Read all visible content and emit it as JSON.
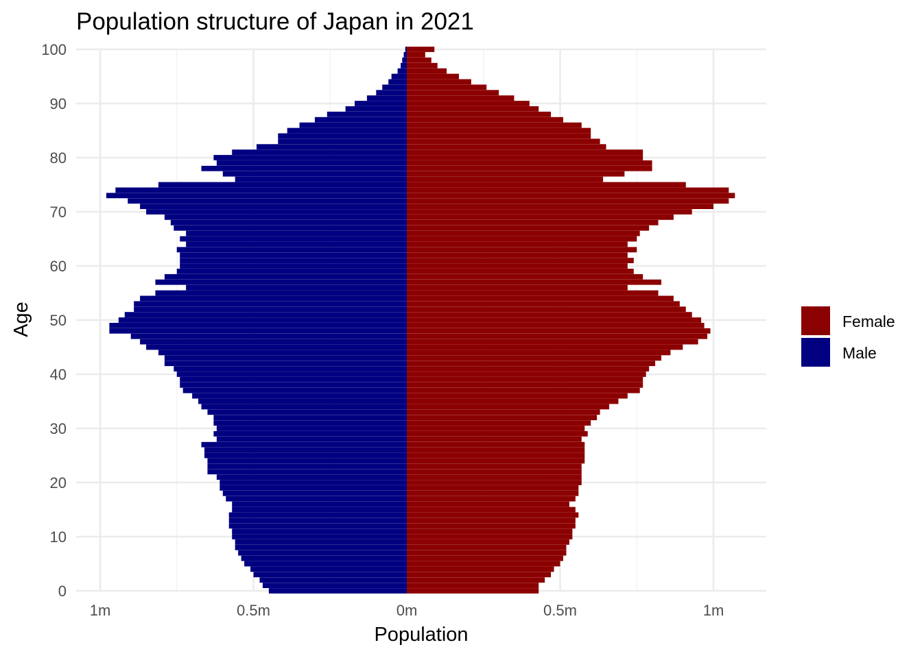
{
  "chart_data": {
    "type": "bar",
    "orientation": "horizontal",
    "title": "Population structure of Japan in 2021",
    "xlabel": "Population",
    "ylabel": "Age",
    "xlim": [
      -1.05,
      1.09
    ],
    "ylim": [
      0,
      100
    ],
    "x_ticks": [
      {
        "value": -1,
        "label": "1m"
      },
      {
        "value": -0.5,
        "label": "0.5m"
      },
      {
        "value": 0,
        "label": "0m"
      },
      {
        "value": 0.5,
        "label": "0.5m"
      },
      {
        "value": 1,
        "label": "1m"
      }
    ],
    "y_ticks": [
      0,
      10,
      20,
      30,
      40,
      50,
      60,
      70,
      80,
      90,
      100
    ],
    "grid": true,
    "legend": {
      "position": "right",
      "entries": [
        {
          "label": "Female",
          "color": "#8b0000"
        },
        {
          "label": "Male",
          "color": "#000080"
        }
      ]
    },
    "units": "millions",
    "ages": [
      0,
      1,
      2,
      3,
      4,
      5,
      6,
      7,
      8,
      9,
      10,
      11,
      12,
      13,
      14,
      15,
      16,
      17,
      18,
      19,
      20,
      21,
      22,
      23,
      24,
      25,
      26,
      27,
      28,
      29,
      30,
      31,
      32,
      33,
      34,
      35,
      36,
      37,
      38,
      39,
      40,
      41,
      42,
      43,
      44,
      45,
      46,
      47,
      48,
      49,
      50,
      51,
      52,
      53,
      54,
      55,
      56,
      57,
      58,
      59,
      60,
      61,
      62,
      63,
      64,
      65,
      66,
      67,
      68,
      69,
      70,
      71,
      72,
      73,
      74,
      75,
      76,
      77,
      78,
      79,
      80,
      81,
      82,
      83,
      84,
      85,
      86,
      87,
      88,
      89,
      90,
      91,
      92,
      93,
      94,
      95,
      96,
      97,
      98,
      99,
      100
    ],
    "series": [
      {
        "name": "Male",
        "color": "#000080",
        "values": [
          0.45,
          0.47,
          0.48,
          0.5,
          0.51,
          0.53,
          0.54,
          0.55,
          0.56,
          0.56,
          0.57,
          0.57,
          0.58,
          0.58,
          0.58,
          0.57,
          0.57,
          0.59,
          0.6,
          0.61,
          0.61,
          0.62,
          0.65,
          0.65,
          0.65,
          0.66,
          0.66,
          0.67,
          0.62,
          0.63,
          0.62,
          0.63,
          0.63,
          0.65,
          0.67,
          0.68,
          0.7,
          0.73,
          0.74,
          0.74,
          0.75,
          0.76,
          0.79,
          0.79,
          0.81,
          0.85,
          0.87,
          0.9,
          0.97,
          0.97,
          0.94,
          0.92,
          0.89,
          0.89,
          0.87,
          0.82,
          0.72,
          0.82,
          0.79,
          0.75,
          0.74,
          0.74,
          0.74,
          0.75,
          0.72,
          0.74,
          0.72,
          0.76,
          0.77,
          0.79,
          0.85,
          0.87,
          0.91,
          0.98,
          0.95,
          0.81,
          0.56,
          0.6,
          0.67,
          0.62,
          0.63,
          0.57,
          0.49,
          0.42,
          0.42,
          0.39,
          0.35,
          0.3,
          0.26,
          0.2,
          0.17,
          0.13,
          0.1,
          0.08,
          0.06,
          0.05,
          0.03,
          0.02,
          0.015,
          0.01,
          0.005
        ]
      },
      {
        "name": "Female",
        "color": "#8b0000",
        "values": [
          0.43,
          0.43,
          0.45,
          0.47,
          0.48,
          0.5,
          0.51,
          0.52,
          0.52,
          0.53,
          0.54,
          0.54,
          0.55,
          0.55,
          0.56,
          0.55,
          0.53,
          0.55,
          0.56,
          0.56,
          0.57,
          0.57,
          0.57,
          0.57,
          0.58,
          0.58,
          0.58,
          0.58,
          0.57,
          0.59,
          0.58,
          0.6,
          0.62,
          0.63,
          0.66,
          0.69,
          0.72,
          0.76,
          0.77,
          0.77,
          0.78,
          0.79,
          0.81,
          0.83,
          0.86,
          0.9,
          0.95,
          0.98,
          0.99,
          0.97,
          0.96,
          0.93,
          0.91,
          0.89,
          0.87,
          0.82,
          0.72,
          0.83,
          0.77,
          0.74,
          0.72,
          0.74,
          0.72,
          0.75,
          0.72,
          0.75,
          0.76,
          0.79,
          0.82,
          0.87,
          0.93,
          1.0,
          1.05,
          1.07,
          1.05,
          0.91,
          0.64,
          0.71,
          0.8,
          0.8,
          0.77,
          0.77,
          0.65,
          0.63,
          0.6,
          0.6,
          0.57,
          0.51,
          0.47,
          0.43,
          0.4,
          0.35,
          0.3,
          0.26,
          0.21,
          0.17,
          0.13,
          0.1,
          0.08,
          0.06,
          0.09
        ]
      }
    ]
  }
}
